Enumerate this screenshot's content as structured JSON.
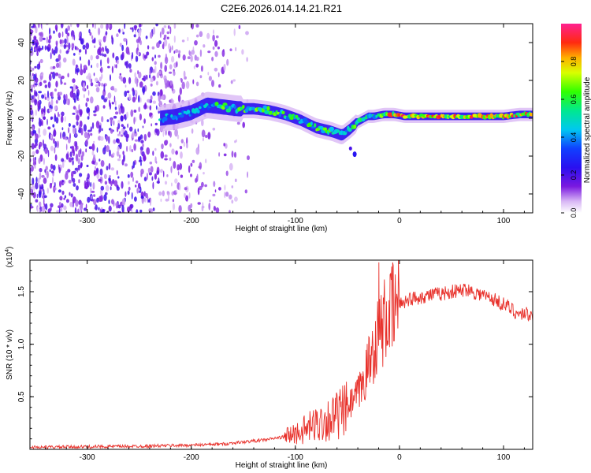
{
  "title": "C2E6.2026.014.14.21.R21",
  "colors": {
    "snr_line": "#e8302a",
    "background": "#ffffff",
    "axis": "#000000"
  },
  "chart_data": [
    {
      "type": "heatmap",
      "name": "spectrogram",
      "xlabel": "Height of straight line (km)",
      "ylabel": "Frequency (Hz)",
      "xlim": [
        -355,
        128
      ],
      "ylim": [
        -50,
        50
      ],
      "xticks": [
        -300,
        -200,
        -100,
        0,
        100
      ],
      "yticks": [
        -40,
        -20,
        0,
        20,
        40
      ],
      "xtick_labels": [
        "-300",
        "-200",
        "-100",
        "0",
        "100"
      ],
      "ytick_labels": [
        "-40",
        "-20",
        "0",
        "20",
        "40"
      ],
      "colorbar": {
        "label": "Normalized spectral amplitude",
        "lim": [
          0,
          1
        ],
        "ticks": [
          0.0,
          0.2,
          0.4,
          0.6,
          0.8
        ],
        "tick_labels": [
          "0.0",
          "0.2",
          "0.4",
          "0.6",
          "0.8"
        ],
        "colormap": "rainbow"
      },
      "ridge": {
        "x": [
          -230,
          -215,
          -200,
          -185,
          -170,
          -155,
          -140,
          -125,
          -110,
          -95,
          -80,
          -65,
          -55,
          -48,
          -40,
          -30,
          -25,
          -15,
          -5,
          5,
          20,
          40,
          60,
          80,
          100,
          115,
          128
        ],
        "y": [
          0,
          1,
          3,
          7,
          6,
          5,
          5,
          4,
          2,
          -1,
          -5,
          -7,
          -9,
          -6,
          -2,
          1,
          1,
          2,
          2,
          1,
          1,
          1,
          1,
          1,
          1,
          2,
          2
        ]
      },
      "noise_region_x": [
        -355,
        -145
      ]
    },
    {
      "type": "line",
      "name": "snr",
      "xlabel": "Height of straight line (km)",
      "ylabel": "SNR (10 * v/v)",
      "y_multiplier": "(x10",
      "y_multiplier_exp": "4",
      "xlim": [
        -355,
        128
      ],
      "ylim": [
        0,
        18000
      ],
      "xticks": [
        -300,
        -200,
        -100,
        0,
        100
      ],
      "yticks": [
        5000,
        10000,
        15000
      ],
      "xtick_labels": [
        "-300",
        "-200",
        "-100",
        "0",
        "100"
      ],
      "ytick_labels": [
        "0.5",
        "1.0",
        "1.5"
      ],
      "series": [
        {
          "name": "SNR",
          "x": [
            -355,
            -300,
            -250,
            -200,
            -170,
            -150,
            -130,
            -110,
            -100,
            -90,
            -80,
            -70,
            -60,
            -50,
            -45,
            -40,
            -35,
            -30,
            -25,
            -22,
            -20,
            -15,
            -10,
            -5,
            0,
            10,
            20,
            30,
            40,
            50,
            60,
            65,
            70,
            80,
            90,
            100,
            110,
            115,
            120,
            128
          ],
          "y": [
            200,
            250,
            300,
            400,
            500,
            700,
            900,
            1200,
            1500,
            1900,
            2400,
            2800,
            3200,
            3800,
            4500,
            5200,
            6300,
            8000,
            9500,
            10500,
            11000,
            12000,
            12800,
            13400,
            13900,
            14300,
            14500,
            14700,
            14800,
            15000,
            15100,
            15300,
            15000,
            14700,
            14300,
            13800,
            13200,
            12800,
            13000,
            12700
          ],
          "spike": {
            "x": -20,
            "y": 17800
          }
        }
      ]
    }
  ]
}
